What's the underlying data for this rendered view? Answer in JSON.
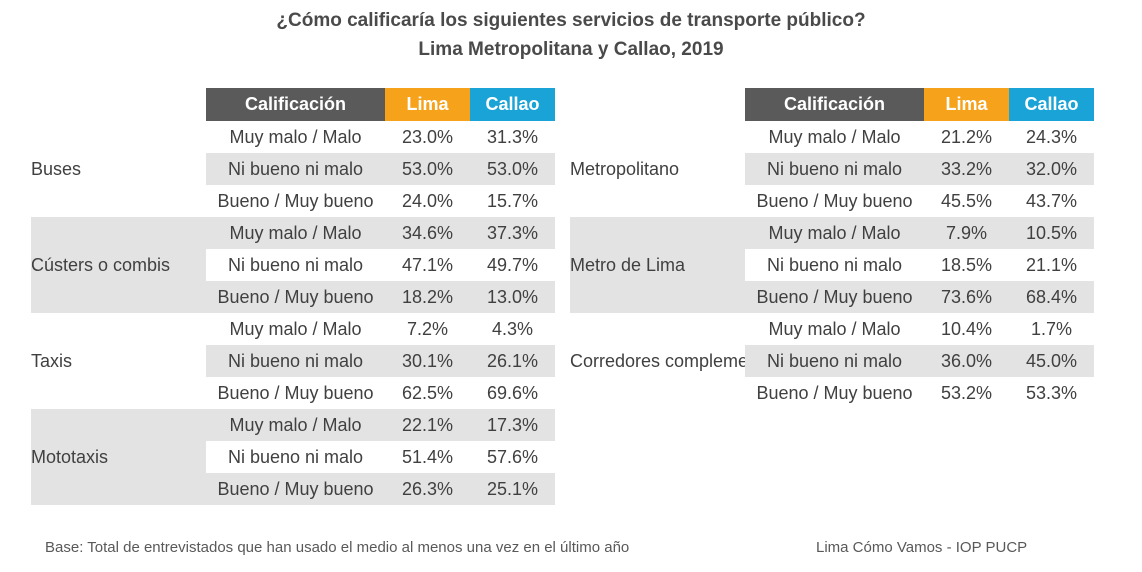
{
  "title": {
    "line1": "¿Cómo calificaría los siguientes servicios de transporte público?",
    "line2": "Lima Metropolitana y Callao, 2019"
  },
  "headers": {
    "calificacion": "Calificación",
    "lima": "Lima",
    "callao": "Callao"
  },
  "left_table": {
    "groups": [
      {
        "name": "Buses",
        "rows": [
          {
            "rating": "Muy malo / Malo",
            "lima": "23.0%",
            "callao": "31.3%"
          },
          {
            "rating": "Ni bueno ni malo",
            "lima": "53.0%",
            "callao": "53.0%"
          },
          {
            "rating": "Bueno / Muy bueno",
            "lima": "24.0%",
            "callao": "15.7%"
          }
        ]
      },
      {
        "name": "Cústers o combis",
        "rows": [
          {
            "rating": "Muy malo / Malo",
            "lima": "34.6%",
            "callao": "37.3%"
          },
          {
            "rating": "Ni bueno ni malo",
            "lima": "47.1%",
            "callao": "49.7%"
          },
          {
            "rating": "Bueno / Muy bueno",
            "lima": "18.2%",
            "callao": "13.0%"
          }
        ]
      },
      {
        "name": "Taxis",
        "rows": [
          {
            "rating": "Muy malo / Malo",
            "lima": "7.2%",
            "callao": "4.3%"
          },
          {
            "rating": "Ni bueno ni malo",
            "lima": "30.1%",
            "callao": "26.1%"
          },
          {
            "rating": "Bueno / Muy bueno",
            "lima": "62.5%",
            "callao": "69.6%"
          }
        ]
      },
      {
        "name": "Mototaxis",
        "rows": [
          {
            "rating": "Muy malo / Malo",
            "lima": "22.1%",
            "callao": "17.3%"
          },
          {
            "rating": "Ni bueno ni malo",
            "lima": "51.4%",
            "callao": "57.6%"
          },
          {
            "rating": "Bueno / Muy bueno",
            "lima": "26.3%",
            "callao": "25.1%"
          }
        ]
      }
    ]
  },
  "right_table": {
    "groups": [
      {
        "name": "Metropolitano",
        "rows": [
          {
            "rating": "Muy malo / Malo",
            "lima": "21.2%",
            "callao": "24.3%"
          },
          {
            "rating": "Ni bueno ni malo",
            "lima": "33.2%",
            "callao": "32.0%"
          },
          {
            "rating": "Bueno / Muy bueno",
            "lima": "45.5%",
            "callao": "43.7%"
          }
        ]
      },
      {
        "name": "Metro de Lima",
        "rows": [
          {
            "rating": "Muy malo / Malo",
            "lima": "7.9%",
            "callao": "10.5%"
          },
          {
            "rating": "Ni bueno ni malo",
            "lima": "18.5%",
            "callao": "21.1%"
          },
          {
            "rating": "Bueno / Muy bueno",
            "lima": "73.6%",
            "callao": "68.4%"
          }
        ]
      },
      {
        "name": "Corredores complementarios",
        "rows": [
          {
            "rating": "Muy malo / Malo",
            "lima": "10.4%",
            "callao": "1.7%"
          },
          {
            "rating": "Ni bueno ni malo",
            "lima": "36.0%",
            "callao": "45.0%"
          },
          {
            "rating": "Bueno / Muy bueno",
            "lima": "53.2%",
            "callao": "53.3%"
          }
        ]
      }
    ]
  },
  "footer": {
    "base": "Base: Total de entrevistados que han usado el medio al menos una vez en el último año",
    "source": "Lima Cómo Vamos - IOP PUCP"
  }
}
